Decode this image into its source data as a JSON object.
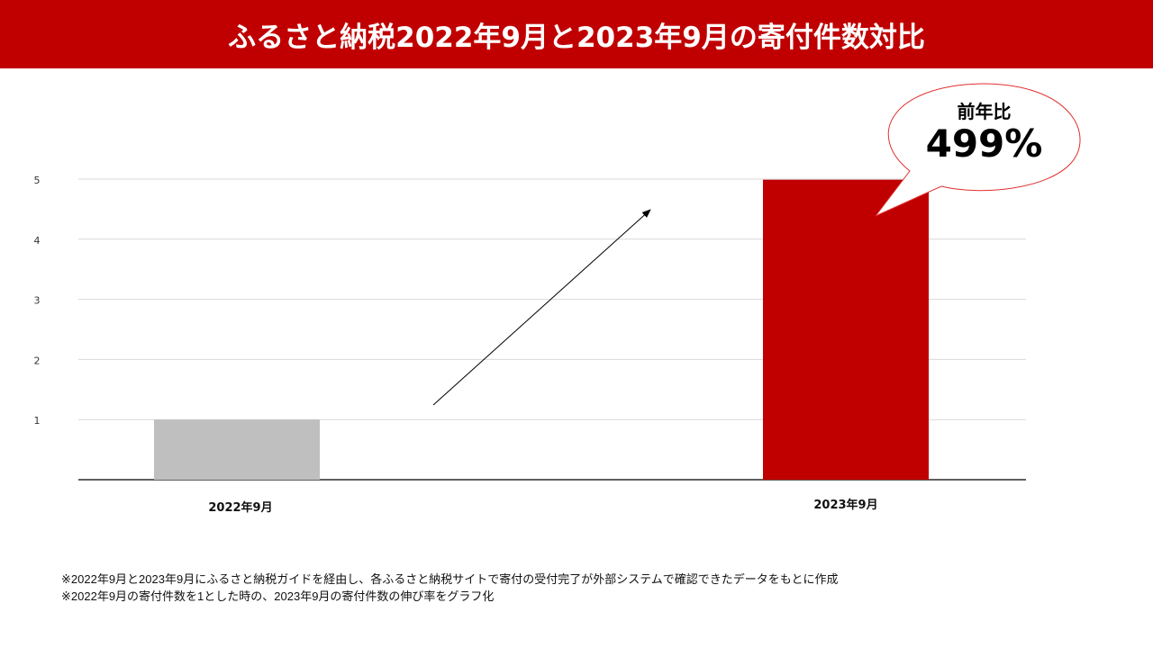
{
  "title": "ふるさと納税2022年9月と2023年9月の寄付件数対比",
  "chart_data": {
    "type": "bar",
    "title": "ふるさと納税2022年9月と2023年9月の寄付件数対比",
    "categories": [
      "2022年9月",
      "2023年9月"
    ],
    "values": [
      1,
      4.99
    ],
    "colors": [
      "#bfbfbf",
      "#c00000"
    ],
    "yticks": [
      1,
      2,
      3,
      4,
      5
    ],
    "ylim": [
      0,
      5
    ],
    "grid": true,
    "annotation": {
      "label": "前年比",
      "value": "499%"
    }
  },
  "notes": [
    "※2022年9月と2023年9月にふるさと納税ガイドを経由し、各ふるさと納税サイトで寄付の受付完了が外部システムで確認できたデータをもとに作成",
    "※2022年9月の寄付件数を1とした時の、2023年9月の寄付件数の伸び率をグラフ化"
  ],
  "colors": {
    "accent": "#c00000",
    "grid": "#d9d9d9"
  }
}
